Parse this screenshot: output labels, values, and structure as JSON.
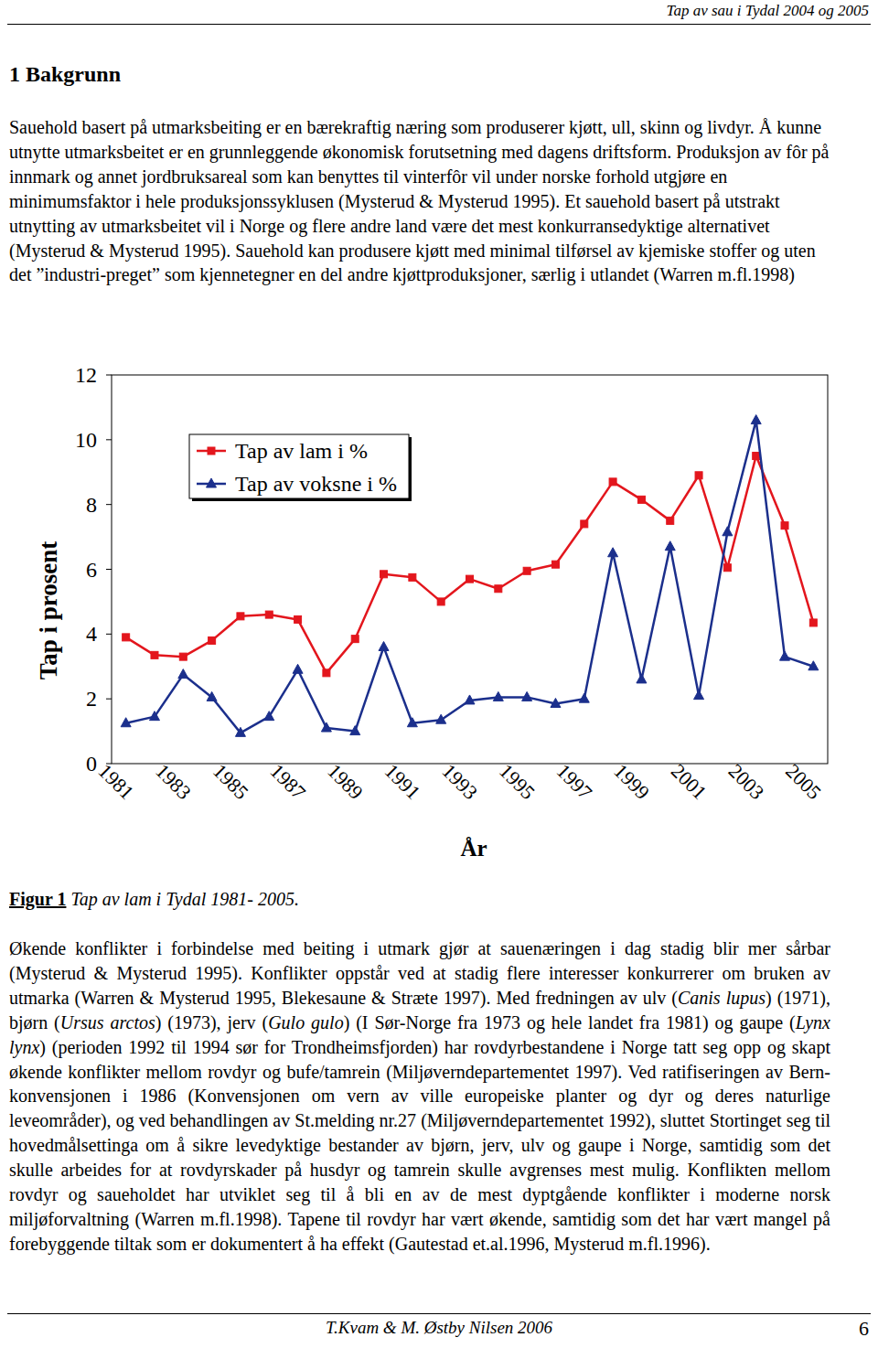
{
  "header": {
    "title": "Tap av sau i Tydal 2004 og 2005"
  },
  "heading": "1 Bakgrunn",
  "paragraphs": [
    {
      "runs": [
        {
          "text": "Sauehold basert på utmarksbeiting er en bærekraftig næring som produserer kjøtt, ull, skinn og livdyr. Å kunne utnytte utmarksbeitet er en grunnleggende økonomisk forutsetning med dagens driftsform. Produksjon av fôr på innmark og annet jordbruksareal som kan benyttes til vinterfôr vil under norske forhold utgjøre en minimumsfaktor i hele produksjonssyklusen (Mysterud & Mysterud 1995). Et sauehold basert på utstrakt utnytting av utmarksbeitet vil i Norge og flere andre land være det mest konkurransedyktige alternativet (Mysterud & Mysterud 1995). Sauehold kan produsere kjøtt med minimal tilførsel av kjemiske stoffer og uten det ”industri-preget” som kjennetegner en del andre kjøttproduksjoner, særlig i utlandet (Warren m.fl.1998)"
        }
      ]
    },
    {
      "runs": [
        {
          "text": "Økende konflikter i forbindelse med beiting i utmark gjør at sauenæringen i dag stadig blir mer sårbar (Mysterud & Mysterud 1995). Konflikter oppstår ved at stadig flere interesser konkurrerer om bruken av utmarka (Warren & Mysterud 1995, Blekesaune & Stræte 1997). Med fredningen av ulv ("
        },
        {
          "text": "Canis lupus",
          "style": "italic"
        },
        {
          "text": ") (1971), bjørn ("
        },
        {
          "text": "Ursus arctos",
          "style": "italic"
        },
        {
          "text": ") (1973), jerv ("
        },
        {
          "text": "Gulo gulo",
          "style": "italic"
        },
        {
          "text": ") (I Sør-Norge fra 1973 og hele landet fra 1981) og gaupe ("
        },
        {
          "text": "Lynx lynx",
          "style": "italic"
        },
        {
          "text": ") (perioden 1992 til 1994 sør for Trondheimsfjorden) har rovdyrbestandene i Norge tatt seg opp og skapt økende konflikter mellom rovdyr og bufe/tamrein (Miljøverndepartementet 1997). Ved ratifiseringen av Bern-konvensjonen i 1986 (Konvensjonen om vern av ville europeiske planter og dyr og deres naturlige leveområder), og ved behandlingen av St.melding nr.27 (Miljøverndepartementet 1992), sluttet Stortinget seg til hovedmålsettinga om å sikre levedyktige bestander av bjørn, jerv, ulv og gaupe i Norge, samtidig som det skulle arbeides for at rovdyrskader på husdyr og tamrein skulle avgrenses mest mulig. Konflikten mellom rovdyr og saueholdet har utviklet seg til å bli en av de mest dyptgående konflikter i moderne norsk miljøforvaltning (Warren m.fl.1998). Tapene til rovdyr har vært økende, samtidig som det har vært mangel på forebyggende tiltak som er dokumentert å ha effekt (Gautestad et.al.1996, Mysterud m.fl.1996)."
        }
      ]
    }
  ],
  "chart_data": {
    "type": "line",
    "xlabel": "År",
    "ylabel": "Tap i prosent",
    "categories": [
      "1981",
      null,
      "1983",
      null,
      "1985",
      null,
      "1987",
      null,
      "1989",
      null,
      "1991",
      null,
      "1993",
      null,
      "1995",
      null,
      "1997",
      null,
      "1999",
      null,
      "2001",
      null,
      "2003",
      null,
      "2005"
    ],
    "series": [
      {
        "name": "Tap av lam i %",
        "color": "#e3161d",
        "marker": "square",
        "values": [
          3.9,
          3.35,
          3.3,
          3.8,
          4.55,
          4.6,
          4.45,
          2.8,
          3.85,
          5.85,
          5.75,
          5.0,
          5.7,
          5.4,
          5.95,
          6.15,
          7.4,
          8.7,
          8.15,
          7.5,
          8.9,
          6.05,
          9.5,
          7.35,
          4.35
        ]
      },
      {
        "name": "Tap av voksne i %",
        "color": "#1b2f8c",
        "marker": "triangle",
        "values": [
          1.25,
          1.45,
          2.75,
          2.05,
          0.95,
          1.45,
          2.9,
          1.1,
          1.0,
          3.6,
          1.25,
          1.35,
          1.95,
          2.05,
          2.05,
          1.85,
          2.0,
          6.5,
          2.6,
          6.7,
          2.1,
          7.15,
          10.6,
          3.3,
          3.0
        ]
      }
    ],
    "ylim": [
      0,
      12
    ],
    "yticks": [
      0,
      2,
      4,
      6,
      8,
      10,
      12
    ],
    "grid": false,
    "legend": "upper-left"
  },
  "caption": {
    "label": "Figur 1",
    "text": "Tap av lam i Tydal 1981- 2005."
  },
  "footer": {
    "authors": "T.Kvam & M. Østby Nilsen 2006",
    "page": "6"
  }
}
